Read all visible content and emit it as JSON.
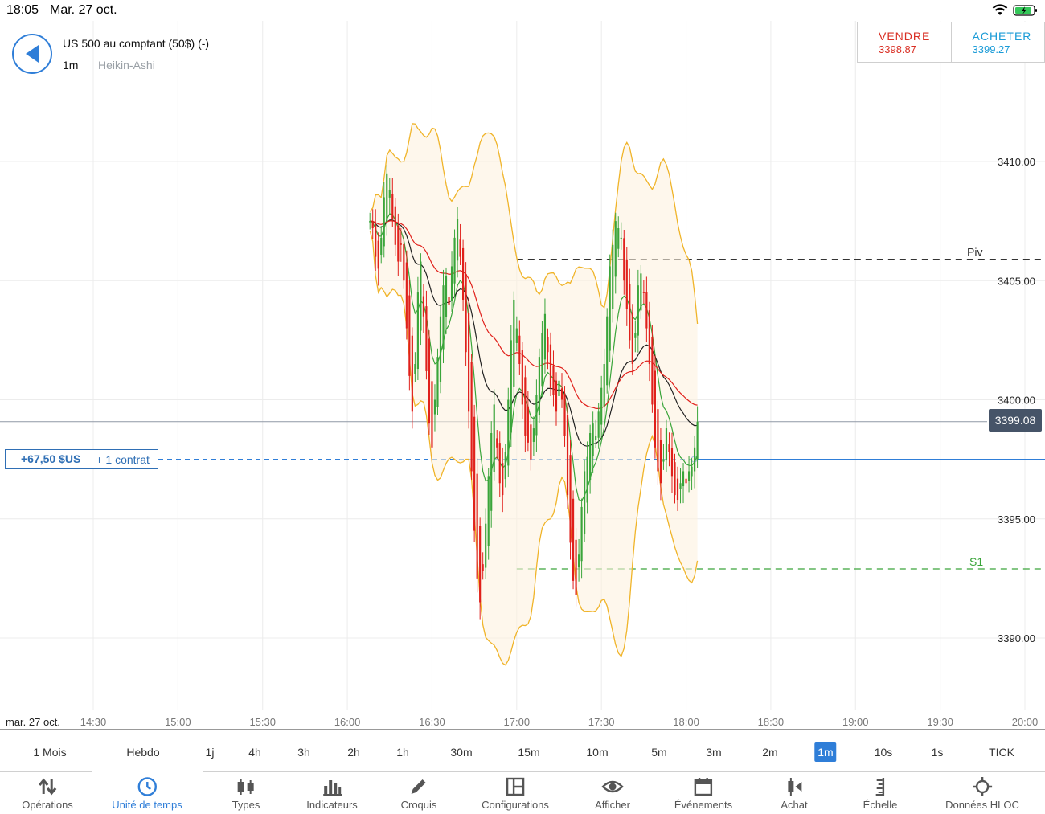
{
  "status": {
    "time": "18:05",
    "date": "Mar. 27 oct."
  },
  "instrument": {
    "name": "US 500 au comptant (50$) (-)",
    "timeframe": "1m",
    "chart_type": "Heikin-Ashi"
  },
  "trade": {
    "sell_label": "VENDRE",
    "sell_price": "3398.87",
    "buy_label": "ACHETER",
    "buy_price": "3399.27"
  },
  "position": {
    "pnl": "+67,50 $US",
    "quantity": "+ 1 contrat"
  },
  "current_price": "3399.08",
  "level_labels": {
    "pivot": "Piv",
    "support": "S1"
  },
  "colors": {
    "up": "#3aa53a",
    "down": "#e0201b",
    "accent": "#2f7ed8",
    "sell": "#d93025",
    "buy": "#1a9bd7",
    "bollinger": "#f0b429"
  },
  "chart_data": {
    "type": "candlestick",
    "style": "Heikin-Ashi",
    "ylim": [
      3387.0,
      3416.0
    ],
    "y_ticks": [
      "3410.00",
      "3405.00",
      "3400.00",
      "3395.00",
      "3390.00"
    ],
    "y_tick_values": [
      3410,
      3405,
      3400,
      3395,
      3390
    ],
    "x_date_label": "mar. 27 oct.",
    "x_ticks": [
      "14:30",
      "15:00",
      "15:30",
      "16:00",
      "16:30",
      "17:00",
      "17:30",
      "18:00",
      "18:30",
      "19:00",
      "19:30",
      "20:00"
    ],
    "x_range_minutes": [
      "14:09",
      "20:00"
    ],
    "last_candle_time": "18:04",
    "levels": {
      "pivot": 3405.9,
      "support_1": 3392.9,
      "position_entry": 3397.5,
      "current": 3399.08
    },
    "close_series": [
      3407.5,
      3407.2,
      3406.0,
      3405.5,
      3406.8,
      3408.5,
      3409.5,
      3408.8,
      3407.6,
      3406.5,
      3405.8,
      3406.5,
      3405.0,
      3403.0,
      3401.0,
      3399.5,
      3401.5,
      3404.5,
      3405.8,
      3403.5,
      3401.2,
      3399.0,
      3398.0,
      3400.0,
      3401.8,
      3403.5,
      3404.8,
      3405.2,
      3404.0,
      3405.6,
      3406.8,
      3407.6,
      3406.0,
      3404.2,
      3402.0,
      3399.5,
      3397.0,
      3394.5,
      3392.5,
      3391.5,
      3392.8,
      3394.8,
      3396.8,
      3398.6,
      3399.8,
      3398.0,
      3396.5,
      3396.0,
      3397.8,
      3400.0,
      3402.5,
      3404.2,
      3403.0,
      3401.5,
      3399.8,
      3398.5,
      3398.2,
      3397.5,
      3398.8,
      3400.2,
      3401.8,
      3402.8,
      3403.6,
      3402.0,
      3400.5,
      3400.2,
      3399.5,
      3400.8,
      3400.0,
      3398.5,
      3396.0,
      3394.0,
      3392.4,
      3391.8,
      3393.5,
      3395.5,
      3397.0,
      3397.6,
      3398.6,
      3399.0,
      3398.5,
      3399.5,
      3400.5,
      3401.5,
      3403.5,
      3405.6,
      3406.5,
      3407.5,
      3407.2,
      3406.8,
      3405.0,
      3403.8,
      3402.5,
      3401.5,
      3402.8,
      3404.8,
      3405.3,
      3404.5,
      3403.0,
      3401.5,
      3399.8,
      3398.0,
      3397.0,
      3396.5,
      3397.5,
      3398.8,
      3397.8,
      3396.8,
      3396.0,
      3395.8,
      3396.5,
      3397.0,
      3396.5,
      3397.0,
      3397.2,
      3398.0,
      3399.08
    ]
  },
  "timeframes": [
    "1 Mois",
    "Hebdo",
    "1j",
    "4h",
    "3h",
    "2h",
    "1h",
    "30m",
    "15m",
    "10m",
    "5m",
    "3m",
    "2m",
    "1m",
    "10s",
    "1s",
    "TICK"
  ],
  "active_timeframe": "1m",
  "toolbar": {
    "operations": "Opérations",
    "timeframe": "Unité de temps",
    "types": "Types",
    "indicators": "Indicateurs",
    "sketch": "Croquis",
    "configurations": "Configurations",
    "display": "Afficher",
    "events": "Événements",
    "purchase": "Achat",
    "scale": "Échelle",
    "ohlc_data": "Données HLOC"
  }
}
